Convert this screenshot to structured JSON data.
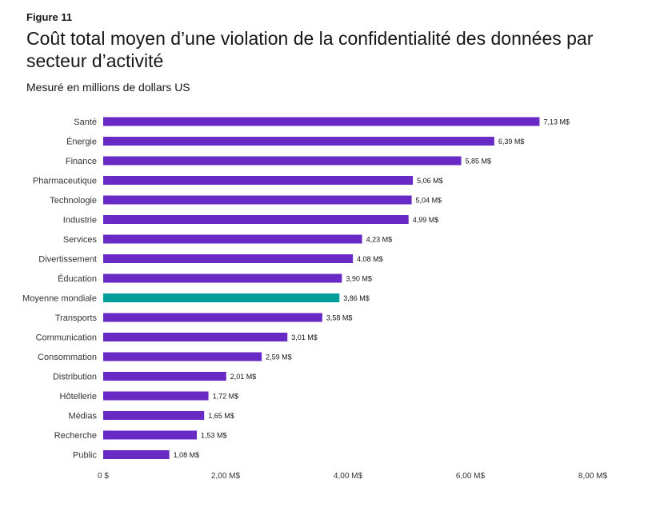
{
  "figure_label": "Figure 11",
  "chart_data": {
    "type": "bar",
    "orientation": "horizontal",
    "title": "Coût total moyen d’une violation de la confidentialité des données par secteur d’activité",
    "subtitle": "Mesuré en millions de dollars US",
    "categories": [
      "Santé",
      "Énergie",
      "Finance",
      "Pharmaceutique",
      "Technologie",
      "Industrie",
      "Services",
      "Divertissement",
      "Éducation",
      "Moyenne mondiale",
      "Transports",
      "Communication",
      "Consommation",
      "Distribution",
      "Hôtellerie",
      "Médias",
      "Recherche",
      "Public"
    ],
    "values": [
      7.13,
      6.39,
      5.85,
      5.06,
      5.04,
      4.99,
      4.23,
      4.08,
      3.9,
      3.86,
      3.58,
      3.01,
      2.59,
      2.01,
      1.72,
      1.65,
      1.53,
      1.08
    ],
    "value_labels": [
      "7,13 M$",
      "6,39 M$",
      "5,85 M$",
      "5,06 M$",
      "5,04 M$",
      "4,99 M$",
      "4,23 M$",
      "4,08 M$",
      "3,90 M$",
      "3,86 M$",
      "3,58 M$",
      "3,01 M$",
      "2,59 M$",
      "2,01 M$",
      "1,72 M$",
      "1,65 M$",
      "1,53 M$",
      "1,08 M$"
    ],
    "highlight_category": "Moyenne mondiale",
    "xlim": [
      0,
      8
    ],
    "x_ticks": [
      0,
      2,
      4,
      6,
      8
    ],
    "x_tick_labels": [
      "0 $",
      "2,00 M$",
      "4,00 M$",
      "6,00 M$",
      "8,00 M$"
    ],
    "grid": false,
    "legend": "none",
    "colors": {
      "bar": "#6929c4",
      "highlight": "#009d9a"
    }
  }
}
